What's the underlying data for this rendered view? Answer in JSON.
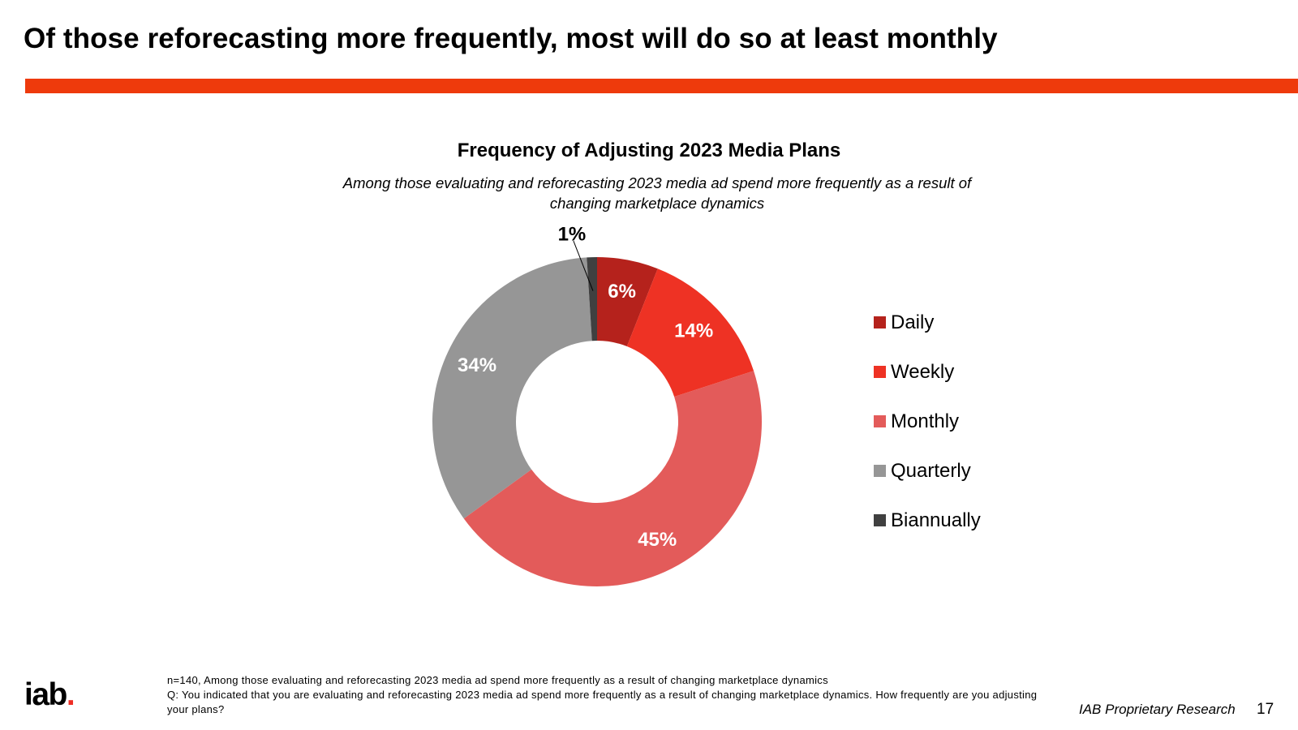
{
  "slide": {
    "title": "Of those reforecasting more frequently, most will do so at least monthly",
    "accent_color": "#ee3a0c",
    "brand_red": "#ee2e24",
    "footnote_line1": "n=140, Among those evaluating and reforecasting 2023 media ad spend more frequently as a result of changing marketplace dynamics",
    "footnote_line2": "Q: You indicated that you are evaluating and reforecasting 2023 media ad spend more frequently as a result of changing marketplace dynamics. How frequently are you adjusting your plans?",
    "logo_text": "iab",
    "logo_dot": ".",
    "proprietary_label": "IAB Proprietary Research",
    "page_number": "17"
  },
  "chart_data": {
    "type": "pie",
    "variant": "donut",
    "title": "Frequency of Adjusting 2023 Media Plans",
    "subtitle": "Among those evaluating and reforecasting 2023 media ad spend more frequently as a result of changing marketplace dynamics",
    "categories": [
      "Daily",
      "Weekly",
      "Monthly",
      "Quarterly",
      "Biannually"
    ],
    "values": [
      6,
      14,
      45,
      34,
      1
    ],
    "labels": [
      "6%",
      "14%",
      "45%",
      "34%",
      "1%"
    ],
    "colors": [
      "#b5221c",
      "#ee3224",
      "#e35b5a",
      "#969696",
      "#404040"
    ],
    "label_colors": [
      "#ffffff",
      "#ffffff",
      "#ffffff",
      "#ffffff",
      "#000000"
    ],
    "legend_position": "right"
  }
}
